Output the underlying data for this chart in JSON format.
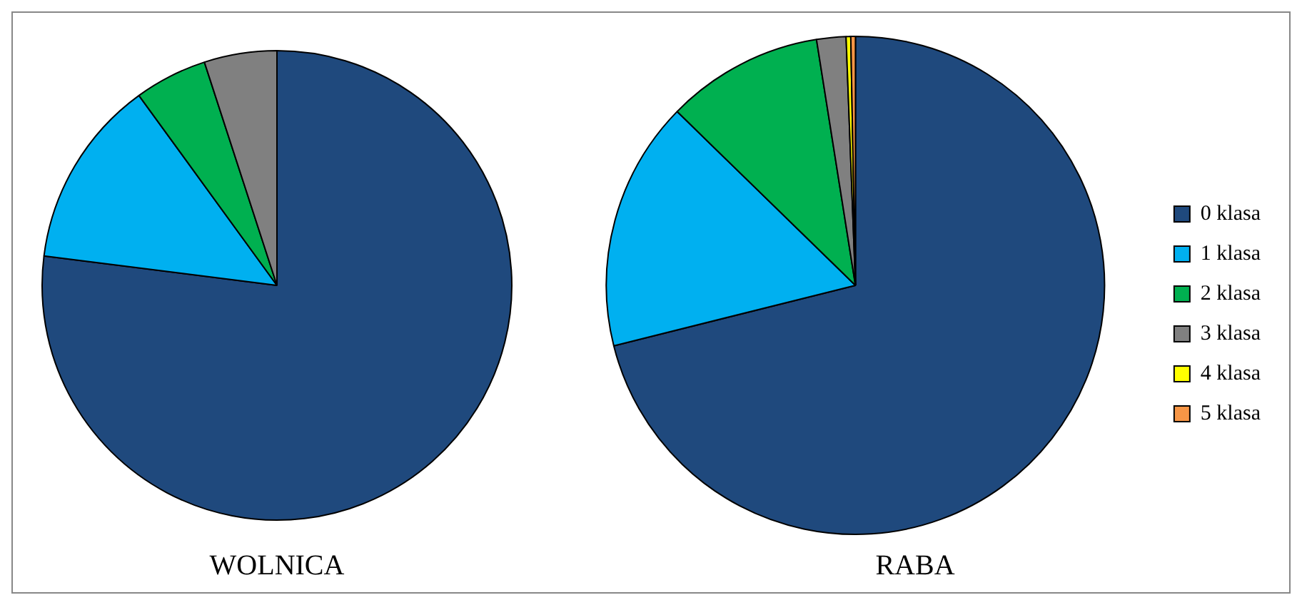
{
  "chart_data": [
    {
      "type": "pie",
      "title": "WOLNICA",
      "categories": [
        null,
        null,
        null,
        null,
        null,
        null
      ],
      "values": [
        77,
        13,
        5,
        5,
        0,
        0
      ],
      "colors": [
        "#1f497d",
        "#00b0f0",
        "#00b050",
        "#808080",
        "#ffff00",
        "#f79646"
      ]
    },
    {
      "type": "pie",
      "title": "RABA",
      "categories": [
        "0 klasa",
        "1 klasa",
        "2 klasa",
        "3 klasa",
        "4 klasa",
        "5 klasa"
      ],
      "values": [
        71.1,
        16.2,
        10.2,
        1.9,
        0.3,
        0.3
      ],
      "colors": [
        "#1f497d",
        "#00b0f0",
        "#00b050",
        "#808080",
        "#ffff00",
        "#f79646"
      ],
      "legend": "right"
    }
  ]
}
